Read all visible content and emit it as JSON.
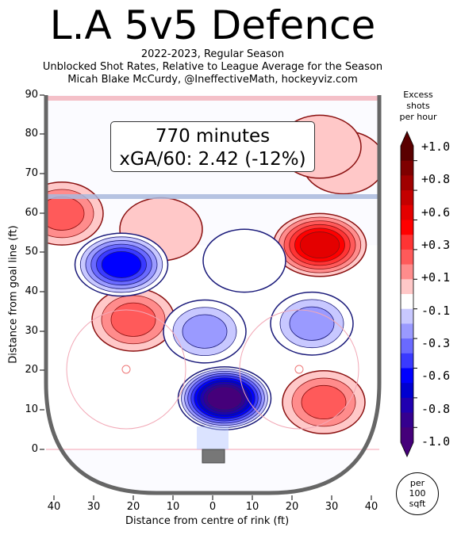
{
  "header": {
    "title": "L.A 5v5 Defence",
    "subtitle_lines": [
      "2022-2023, Regular Season",
      "Unblocked Shot Rates, Relative to League Average for the Season",
      "Micah Blake McCurdy, @IneffectiveMath, hockeyviz.com"
    ]
  },
  "annotation": {
    "line1": "770 minutes",
    "line2": "xGA/60: 2.42 (-12%)"
  },
  "colorbar": {
    "title_lines": [
      "Excess",
      "shots",
      "per hour"
    ],
    "tick_labels": [
      "+1.0",
      "+0.8",
      "+0.6",
      "+0.3",
      "+0.1",
      "-0.1",
      "-0.3",
      "-0.6",
      "-0.8",
      "-1.0"
    ],
    "colors": [
      "#5a0000",
      "#7e0000",
      "#a00000",
      "#c40000",
      "#e40000",
      "#ff0000",
      "#ff3434",
      "#ff5a5a",
      "#ff8c8c",
      "#ffc8c8",
      "#ffffff",
      "#c8c8ff",
      "#9a9aff",
      "#6a6aff",
      "#3a3aff",
      "#0000ff",
      "#0000d0",
      "#2000b0",
      "#35008f",
      "#45007a"
    ]
  },
  "unit_badge": [
    "per",
    "100",
    "sqft"
  ],
  "colors": {
    "excess": "#ff8c8c",
    "deficit": "#6a6aff",
    "strong_deficit": "#0000e0",
    "boards": "#666666",
    "blue_line": "#a9b9dd",
    "goal_line": "#f4c0c8"
  },
  "chart_data": {
    "type": "heatmap",
    "title": "L.A 5v5 Defence",
    "xlabel": "Distance from centre of rink (ft)",
    "ylabel": "Distance from goal line (ft)",
    "xlim": [
      -42,
      42
    ],
    "ylim": [
      -11,
      90
    ],
    "x_ticks": [
      40,
      30,
      20,
      10,
      0,
      10,
      20,
      30,
      40
    ],
    "y_ticks": [
      0,
      10,
      20,
      30,
      40,
      50,
      60,
      70,
      80,
      90
    ],
    "color_range": [
      -1.0,
      1.0
    ],
    "regions": [
      {
        "x": -38,
        "y": 60,
        "value": 0.3
      },
      {
        "x": -20,
        "y": 33,
        "value": 0.3
      },
      {
        "x": -13,
        "y": 56,
        "value": 0.1
      },
      {
        "x": 27,
        "y": 52,
        "value": 0.6
      },
      {
        "x": 33,
        "y": 73,
        "value": 0.1
      },
      {
        "x": 27,
        "y": 77,
        "value": 0.1
      },
      {
        "x": 28,
        "y": 12,
        "value": 0.3
      },
      {
        "x": 3,
        "y": 13,
        "value": -1.0
      },
      {
        "x": -23,
        "y": 47,
        "value": -0.6
      },
      {
        "x": 25,
        "y": 32,
        "value": -0.3
      },
      {
        "x": -2,
        "y": 30,
        "value": -0.3
      },
      {
        "x": 8,
        "y": 48,
        "value": -0.1
      }
    ]
  }
}
